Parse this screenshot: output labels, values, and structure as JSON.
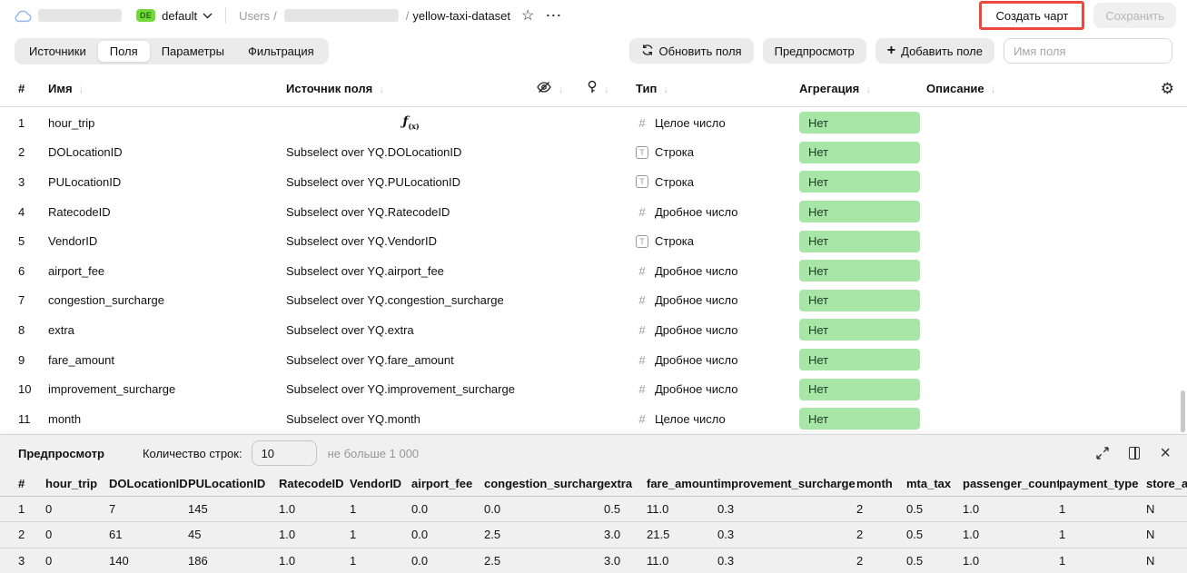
{
  "topbar": {
    "env_badge": "DE",
    "env_name": "default",
    "breadcrumb": {
      "root": "Users",
      "sep": "/",
      "dataset": "yellow-taxi-dataset"
    },
    "create_chart_label": "Создать чарт",
    "save_label": "Сохранить"
  },
  "toolbar": {
    "tabs": [
      {
        "label": "Источники",
        "active": false
      },
      {
        "label": "Поля",
        "active": true
      },
      {
        "label": "Параметры",
        "active": false
      },
      {
        "label": "Фильтрация",
        "active": false
      }
    ],
    "update_fields_label": "Обновить поля",
    "preview_label": "Предпросмотр",
    "add_field_label": "Добавить поле",
    "field_name_placeholder": "Имя поля"
  },
  "fields_table": {
    "sort_arrow": "↓",
    "headers": {
      "num": "#",
      "name": "Имя",
      "source": "Источник поля",
      "type": "Тип",
      "aggregation": "Агрегация",
      "description": "Описание"
    },
    "rows": [
      {
        "num": 1,
        "name": "hour_trip",
        "source": "",
        "formula": true,
        "type_icon": "number",
        "type": "Целое число",
        "aggregation": "Нет"
      },
      {
        "num": 2,
        "name": "DOLocationID",
        "source": "Subselect over YQ.DOLocationID",
        "formula": false,
        "type_icon": "string",
        "type": "Строка",
        "aggregation": "Нет"
      },
      {
        "num": 3,
        "name": "PULocationID",
        "source": "Subselect over YQ.PULocationID",
        "formula": false,
        "type_icon": "string",
        "type": "Строка",
        "aggregation": "Нет"
      },
      {
        "num": 4,
        "name": "RatecodeID",
        "source": "Subselect over YQ.RatecodeID",
        "formula": false,
        "type_icon": "number",
        "type": "Дробное число",
        "aggregation": "Нет"
      },
      {
        "num": 5,
        "name": "VendorID",
        "source": "Subselect over YQ.VendorID",
        "formula": false,
        "type_icon": "string",
        "type": "Строка",
        "aggregation": "Нет"
      },
      {
        "num": 6,
        "name": "airport_fee",
        "source": "Subselect over YQ.airport_fee",
        "formula": false,
        "type_icon": "number",
        "type": "Дробное число",
        "aggregation": "Нет"
      },
      {
        "num": 7,
        "name": "congestion_surcharge",
        "source": "Subselect over YQ.congestion_surcharge",
        "formula": false,
        "type_icon": "number",
        "type": "Дробное число",
        "aggregation": "Нет"
      },
      {
        "num": 8,
        "name": "extra",
        "source": "Subselect over YQ.extra",
        "formula": false,
        "type_icon": "number",
        "type": "Дробное число",
        "aggregation": "Нет"
      },
      {
        "num": 9,
        "name": "fare_amount",
        "source": "Subselect over YQ.fare_amount",
        "formula": false,
        "type_icon": "number",
        "type": "Дробное число",
        "aggregation": "Нет"
      },
      {
        "num": 10,
        "name": "improvement_surcharge",
        "source": "Subselect over YQ.improvement_surcharge",
        "formula": false,
        "type_icon": "number",
        "type": "Дробное число",
        "aggregation": "Нет"
      },
      {
        "num": 11,
        "name": "month",
        "source": "Subselect over YQ.month",
        "formula": false,
        "type_icon": "number",
        "type": "Целое число",
        "aggregation": "Нет"
      }
    ]
  },
  "preview": {
    "title": "Предпросмотр",
    "rows_count_label": "Количество строк:",
    "rows_count_value": "10",
    "limit_hint": "не больше 1 000",
    "table": {
      "headers": [
        "#",
        "hour_trip",
        "DOLocationID",
        "PULocationID",
        "RatecodeID",
        "VendorID",
        "airport_fee",
        "congestion_surcharge",
        "extra",
        "fare_amount",
        "improvement_surcharge",
        "month",
        "mta_tax",
        "passenger_count",
        "payment_type",
        "store_an"
      ],
      "rows": [
        [
          "1",
          "0",
          "7",
          "145",
          "1.0",
          "1",
          "0.0",
          "0.0",
          "0.5",
          "11.0",
          "0.3",
          "2",
          "0.5",
          "1.0",
          "1",
          "N"
        ],
        [
          "2",
          "0",
          "61",
          "45",
          "1.0",
          "1",
          "0.0",
          "2.5",
          "3.0",
          "21.5",
          "0.3",
          "2",
          "0.5",
          "1.0",
          "1",
          "N"
        ],
        [
          "3",
          "0",
          "140",
          "186",
          "1.0",
          "1",
          "0.0",
          "2.5",
          "3.0",
          "11.0",
          "0.3",
          "2",
          "0.5",
          "1.0",
          "1",
          "N"
        ]
      ]
    }
  },
  "icons": {
    "cloud": "cloud-outline",
    "chevron": "chevron-down",
    "star": "☆",
    "more": "⋯",
    "refresh": "sync-arrows",
    "plus": "+",
    "eye_off": "eye-slash",
    "key": "key",
    "gear": "⚙",
    "expand": "corner-arrows",
    "split": "split-view",
    "close": "×",
    "formula": "ƒ(x)"
  },
  "colors": {
    "aggregation_badge_bg": "#a8e6a8",
    "env_badge_bg": "#74d83b",
    "annotation_red": "#f0473c",
    "panel_gray": "#f0f0f0",
    "control_gray": "#ebebeb"
  }
}
